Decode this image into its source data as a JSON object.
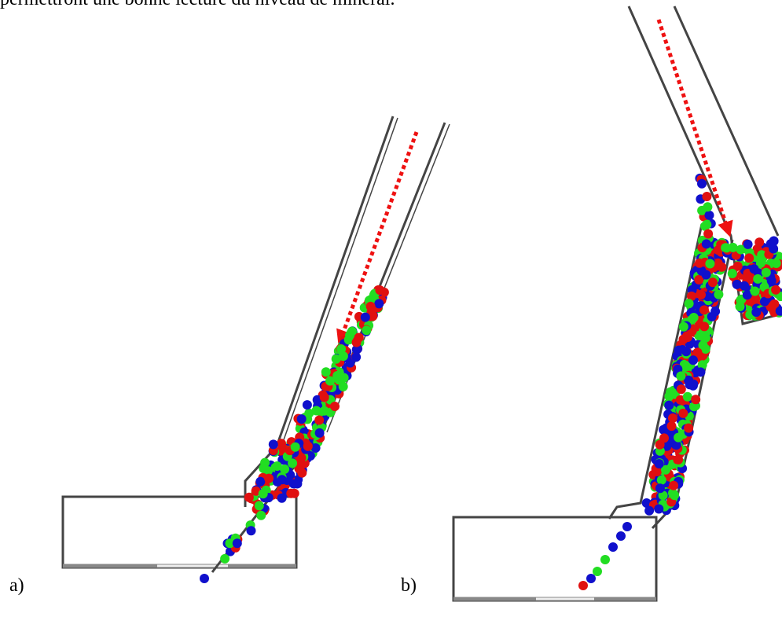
{
  "text_line": "permettront une bonne lecture du niveau de minerai.",
  "figure": {
    "panels": [
      {
        "label": "a)"
      },
      {
        "label": "b)"
      }
    ]
  }
}
